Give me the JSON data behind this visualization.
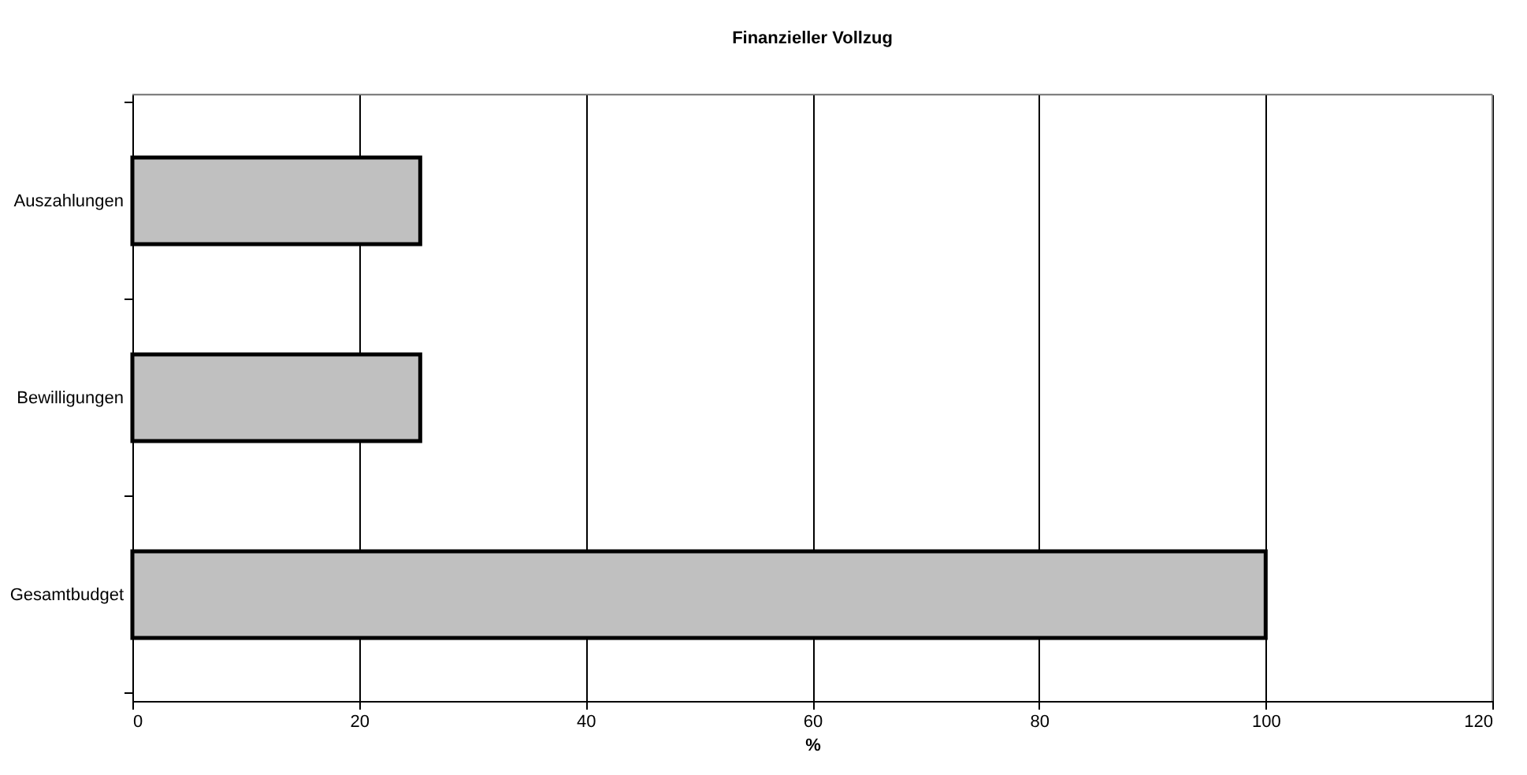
{
  "chart_data": {
    "type": "bar",
    "orientation": "horizontal",
    "title": "Finanzieller Vollzug",
    "xlabel": "%",
    "categories": [
      "Auszahlungen",
      "Bewilligungen",
      "Gesamtbudget"
    ],
    "values": [
      25.4,
      25.4,
      100
    ],
    "color": "#c0c0c0",
    "xlim": [
      0,
      120
    ],
    "xticks": [
      0,
      20,
      40,
      60,
      80,
      100,
      120
    ],
    "grid": "x"
  }
}
